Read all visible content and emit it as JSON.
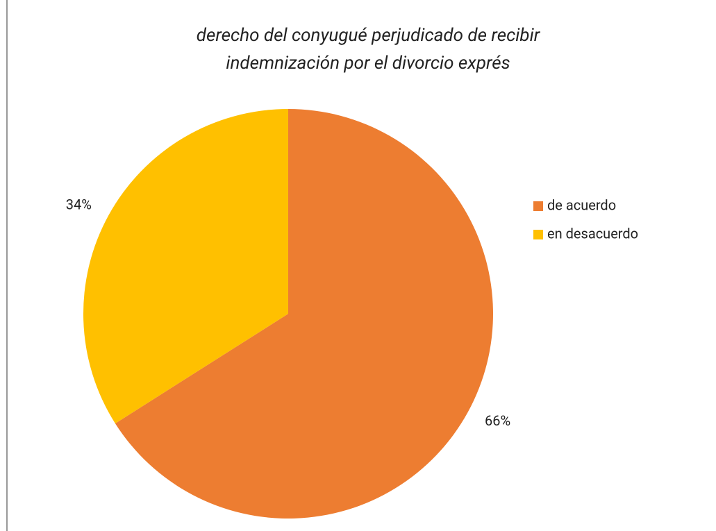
{
  "chart_data": {
    "type": "pie",
    "title": [
      "derecho del conyugué perjudicado de recibir",
      "indemnización por el divorcio exprés"
    ],
    "categories": [
      "de acuerdo",
      "en desacuerdo"
    ],
    "values": [
      66,
      34
    ],
    "value_labels": [
      "66%",
      "34%"
    ],
    "colors": [
      "#ed7d31",
      "#ffc000"
    ],
    "legend": "right"
  }
}
